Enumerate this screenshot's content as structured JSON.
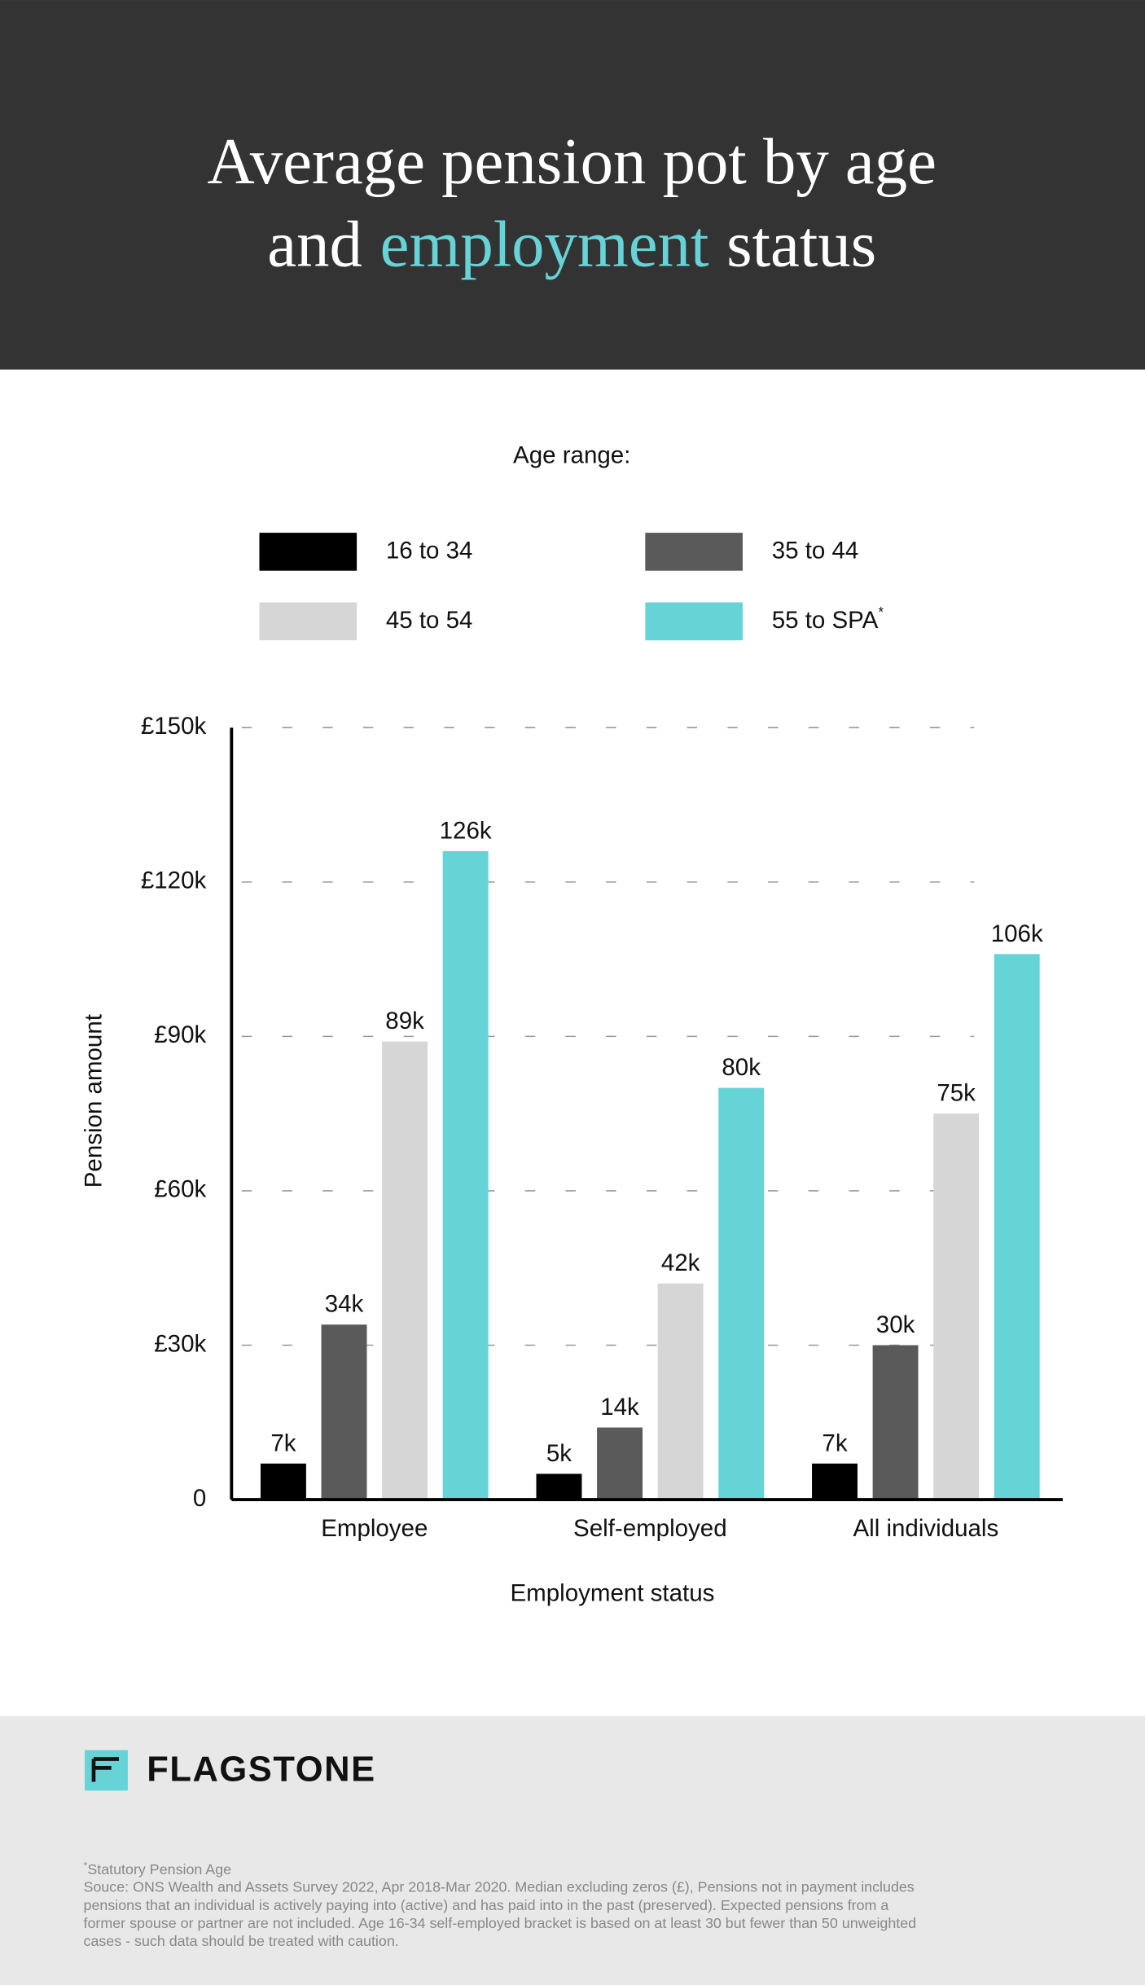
{
  "chart_data": {
    "type": "bar",
    "title": {
      "line1": "Average pension pot by age",
      "line2_start": "and",
      "highlight": "employment",
      "line2_end": "status"
    },
    "legend_title": "Age range:",
    "categories": [
      "Employee",
      "Self-employed",
      "All individuals"
    ],
    "series": [
      {
        "name": "16 to 34",
        "color": "#000000",
        "values": [
          7000,
          5000,
          7000
        ],
        "value_labels": [
          "7k",
          "5k",
          "7k"
        ]
      },
      {
        "name": "35 to 44",
        "color": "#5a5a5a",
        "values": [
          34000,
          14000,
          30000
        ],
        "value_labels": [
          "34k",
          "14k",
          "30k"
        ]
      },
      {
        "name": "45 to 54",
        "color": "#d6d6d6",
        "values": [
          89000,
          42000,
          75000
        ],
        "value_labels": [
          "89k",
          "42k",
          "75k"
        ]
      },
      {
        "name": "55 to SPA",
        "name_marker": "*",
        "color": "#66d3d6",
        "values": [
          126000,
          80000,
          106000
        ],
        "value_labels": [
          "126k",
          "80k",
          "106k"
        ]
      }
    ],
    "ylim": [
      0,
      150000
    ],
    "yticks": [
      0,
      {
        "value": 30000,
        "label": "£30k"
      },
      {
        "value": 60000,
        "label": "£60k"
      },
      {
        "value": 90000,
        "label": "£90k"
      },
      {
        "value": 120000,
        "label": "£120k"
      },
      {
        "value": 150000,
        "label": "£150k"
      }
    ],
    "grid": true,
    "ylabel": "Pension amount",
    "xlabel": "Employment status"
  },
  "footer": {
    "brand": "FLAGSTONE",
    "footnote_marker": "*",
    "footnote": "Statutory Pension Age",
    "source_lines": [
      "Souce: ONS Wealth and Assets Survey 2022, Apr 2018-Mar 2020. Median excluding zeros (£), Pensions not in payment includes",
      "pensions that an individual is actively paying into (active) and has paid into in the past (preserved). Expected pensions from a",
      "former spouse or partner are not included. Age 16-34 self-employed bracket is based on at least 30 but fewer than 50 unweighted",
      "cases - such data should be treated with caution."
    ]
  }
}
